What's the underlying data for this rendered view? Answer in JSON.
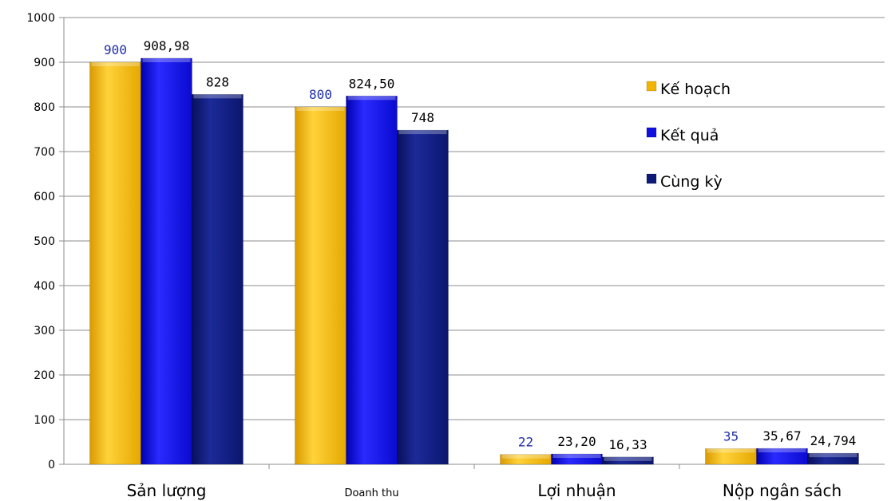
{
  "chart_data": {
    "type": "bar",
    "categories": [
      "Sản lượng",
      "Doanh thu",
      "Lợi nhuận",
      "Nộp ngân sách"
    ],
    "series": [
      {
        "name": "Kế hoạch",
        "color": "#f2b400",
        "values": [
          900,
          800,
          22,
          35
        ],
        "labels": [
          "900",
          "800",
          "22",
          "35"
        ]
      },
      {
        "name": "Kết quả",
        "color": "#1010e0",
        "values": [
          908.98,
          824.5,
          23.2,
          35.67
        ],
        "labels": [
          "908,98",
          "824,50",
          "23,20",
          "35,67"
        ]
      },
      {
        "name": "Cùng kỳ",
        "color": "#0d1a78",
        "values": [
          828,
          748,
          16.33,
          24.794
        ],
        "labels": [
          "828",
          "748",
          "16,33",
          "24,794"
        ]
      }
    ],
    "ylim": [
      0,
      1000
    ],
    "yticks": [
      0,
      100,
      200,
      300,
      400,
      500,
      600,
      700,
      800,
      900,
      1000
    ],
    "grid": true,
    "legend_position": "right"
  }
}
